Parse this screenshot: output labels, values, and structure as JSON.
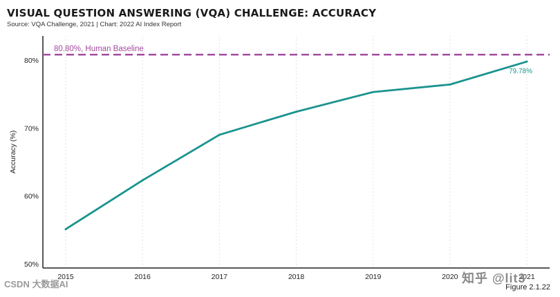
{
  "chart_data": {
    "type": "line",
    "title": "VISUAL QUESTION ANSWERING (VQA) CHALLENGE: ACCURACY",
    "subtitle": "Source: VQA Challenge, 2021 | Chart: 2022 AI Index Report",
    "xlabel": "",
    "ylabel": "Accuracy (%)",
    "x": [
      "2015",
      "2016",
      "2017",
      "2018",
      "2019",
      "2020",
      "2021"
    ],
    "series": [
      {
        "name": "Accuracy",
        "values": [
          55.1,
          62.3,
          69.0,
          72.4,
          75.3,
          76.4,
          79.78
        ],
        "color": "#1a938f",
        "end_label": "79.78%"
      }
    ],
    "yticks": [
      50,
      60,
      70,
      80
    ],
    "ytick_labels": [
      "50%",
      "60%",
      "70%",
      "80%"
    ],
    "ylim": [
      50,
      83
    ],
    "grid": "vertical-dotted",
    "reference_line": {
      "value": 80.8,
      "label": "80.80%, Human Baseline",
      "color": "#a24a9e"
    }
  },
  "figure_label": "Figure 2.1.22",
  "watermarks": {
    "left": "CSDN 大数据AI",
    "right": "知乎 @lit3"
  }
}
